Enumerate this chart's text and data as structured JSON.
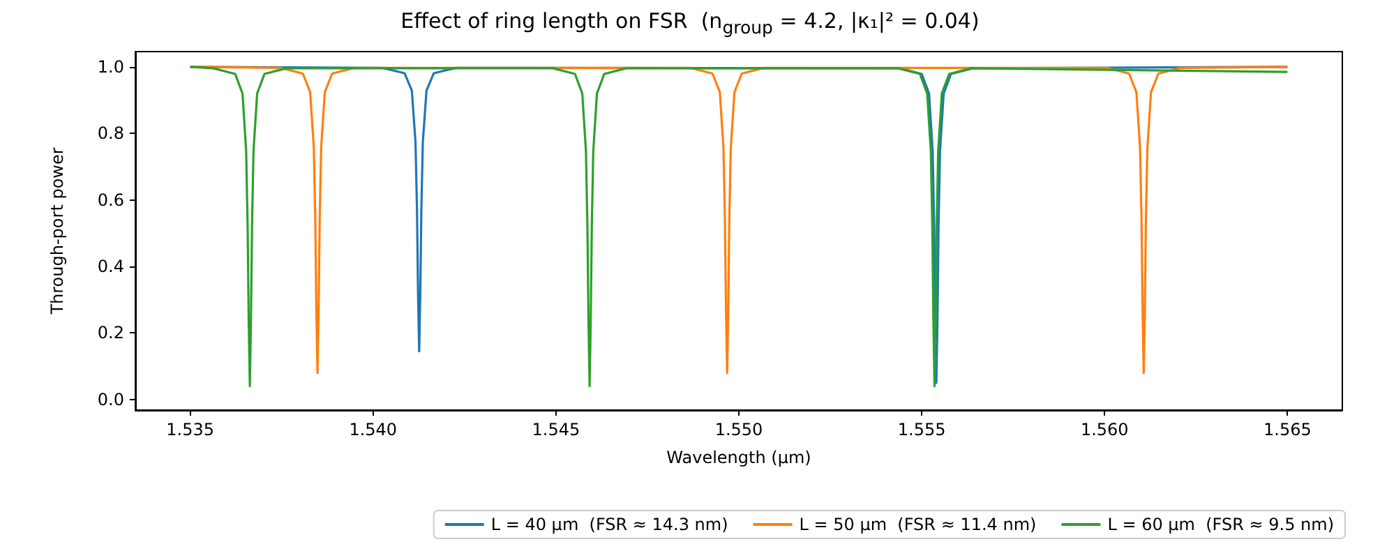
{
  "chart_data": {
    "type": "line",
    "title": "Effect of ring length on FSR  (n$_{group}$ = 4.2, |κ₁|² = 0.04)",
    "xlabel": "Wavelength (µm)",
    "ylabel": "Through-port power",
    "xlim": [
      1.5335,
      1.5665
    ],
    "xticks": [
      1.535,
      {
        "value": 1.54,
        "label": "1.540"
      },
      1.545,
      {
        "value": 1.55,
        "label": "1.550"
      },
      1.555,
      {
        "value": 1.56,
        "label": "1.560"
      },
      1.565
    ],
    "ylim": [
      -0.032,
      1.046
    ],
    "yticks": [
      {
        "value": 0,
        "label": "0.0"
      },
      0.2,
      0.4,
      0.6,
      0.8,
      {
        "value": 1,
        "label": "1.0"
      }
    ],
    "grid": false,
    "legend": "bottom right",
    "marker": "none",
    "line_style": "solid",
    "series": [
      {
        "name": "L = 40 µm  (FSR ≈ 14.3 nm)",
        "color": "#1f77b4",
        "x": [
          1.535,
          1.54026,
          1.54086,
          1.54106,
          1.54116,
          1.5412,
          1.54123,
          1.54126,
          1.54129,
          1.54132,
          1.54136,
          1.54146,
          1.54166,
          1.54226,
          1.5544,
          1.555,
          1.5552,
          1.5553,
          1.55534,
          1.55537,
          1.5554,
          1.55543,
          1.55546,
          1.5555,
          1.5556,
          1.5558,
          1.5564,
          1.565
        ],
        "values": [
          1,
          0.997,
          0.981,
          0.929,
          0.773,
          0.573,
          0.316,
          0.145,
          0.316,
          0.573,
          0.773,
          0.929,
          0.981,
          0.997,
          0.996,
          0.979,
          0.92,
          0.746,
          0.52,
          0.232,
          0.05,
          0.232,
          0.52,
          0.746,
          0.92,
          0.979,
          0.996,
          1
        ]
      },
      {
        "name": "L = 50 µm  (FSR ≈ 11.4 nm)",
        "color": "#ff7f0e",
        "x": [
          1.535,
          1.53748,
          1.53808,
          1.53828,
          1.53838,
          1.53842,
          1.53845,
          1.53848,
          1.53851,
          1.53854,
          1.53858,
          1.53868,
          1.53888,
          1.53948,
          1.54868,
          1.54928,
          1.54948,
          1.54958,
          1.54962,
          1.54965,
          1.54968,
          1.54971,
          1.54974,
          1.54978,
          1.54988,
          1.55008,
          1.55068,
          1.56007,
          1.56067,
          1.56087,
          1.56097,
          1.56101,
          1.56104,
          1.56107,
          1.5611,
          1.56113,
          1.56117,
          1.56127,
          1.56147,
          1.56207,
          1.565
        ],
        "values": [
          1,
          0.997,
          0.98,
          0.924,
          0.756,
          0.54,
          0.264,
          0.08,
          0.264,
          0.54,
          0.756,
          0.924,
          0.98,
          0.997,
          0.997,
          0.98,
          0.924,
          0.756,
          0.54,
          0.264,
          0.08,
          0.264,
          0.54,
          0.756,
          0.924,
          0.98,
          0.997,
          0.997,
          0.98,
          0.924,
          0.756,
          0.54,
          0.264,
          0.08,
          0.264,
          0.54,
          0.756,
          0.924,
          0.98,
          0.997,
          1
        ]
      },
      {
        "name": "L = 60 µm  (FSR ≈ 9.5 nm)",
        "color": "#2ca02c",
        "x": [
          1.535,
          1.53563,
          1.53623,
          1.53643,
          1.53653,
          1.53657,
          1.5366,
          1.53663,
          1.53666,
          1.53669,
          1.53673,
          1.53683,
          1.53703,
          1.53763,
          1.54492,
          1.54552,
          1.54572,
          1.54582,
          1.54586,
          1.54589,
          1.54592,
          1.54595,
          1.54598,
          1.54602,
          1.54612,
          1.54632,
          1.54692,
          1.55435,
          1.55495,
          1.55515,
          1.55525,
          1.55529,
          1.55532,
          1.55535,
          1.55538,
          1.55541,
          1.55545,
          1.55555,
          1.55575,
          1.55635,
          1.565
        ],
        "values": [
          1,
          0.996,
          0.979,
          0.92,
          0.746,
          0.52,
          0.232,
          0.04,
          0.232,
          0.52,
          0.746,
          0.92,
          0.979,
          0.996,
          0.996,
          0.979,
          0.92,
          0.746,
          0.52,
          0.232,
          0.04,
          0.232,
          0.52,
          0.746,
          0.92,
          0.979,
          0.996,
          0.996,
          0.979,
          0.92,
          0.746,
          0.52,
          0.232,
          0.04,
          0.232,
          0.52,
          0.746,
          0.92,
          0.979,
          0.996,
          0.985
        ]
      }
    ]
  }
}
